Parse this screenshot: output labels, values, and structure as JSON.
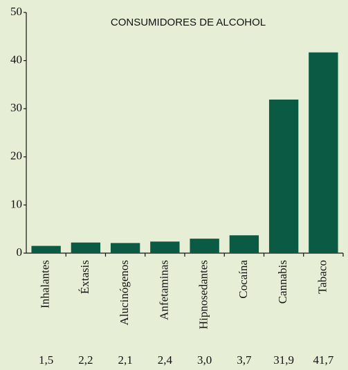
{
  "chart_data": {
    "type": "bar",
    "title": "CONSUMIDORES DE ALCOHOL",
    "categories": [
      "Inhalantes",
      "Éxtasis",
      "Alucinógenos",
      "Anfetaminas",
      "Hipnosedantes",
      "Cocaína",
      "Cannabis",
      "Tabaco"
    ],
    "values": [
      1.5,
      2.2,
      2.1,
      2.4,
      3.0,
      3.7,
      31.9,
      41.7
    ],
    "value_labels": [
      "1,5",
      "2,2",
      "2,1",
      "2,4",
      "3,0",
      "3,7",
      "31,9",
      "41,7"
    ],
    "color": "#0b5a43",
    "ylim": [
      0,
      50
    ],
    "yticks": [
      0,
      10,
      20,
      30,
      40,
      50
    ]
  }
}
